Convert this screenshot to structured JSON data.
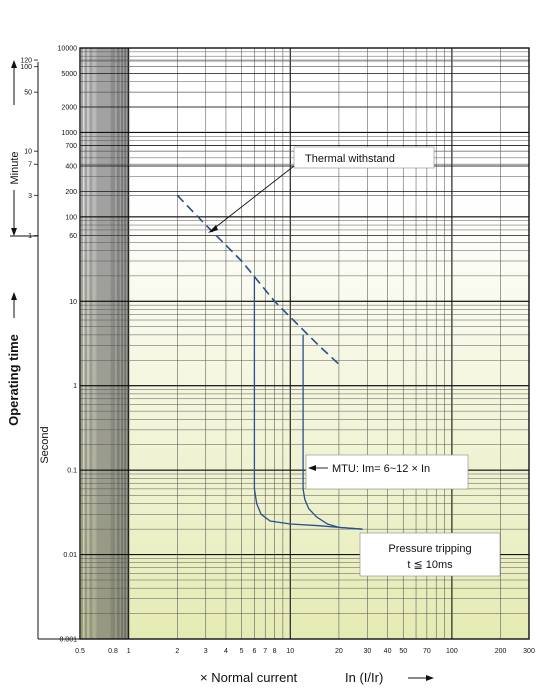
{
  "chart_data": {
    "type": "line",
    "title": "",
    "xscale": "log",
    "yscale": "log",
    "xlim": [
      0.5,
      300
    ],
    "ylim": [
      0.001,
      10000
    ],
    "grid": true,
    "x_ticks": [
      "0.5",
      "0.8",
      "1",
      "2",
      "3",
      "4",
      "5",
      "6",
      "7",
      "8",
      "10",
      "20",
      "30",
      "40",
      "50",
      "70",
      "100",
      "200",
      "300"
    ],
    "x_tick_values": [
      0.5,
      0.8,
      1,
      2,
      3,
      4,
      5,
      6,
      7,
      8,
      10,
      20,
      30,
      40,
      50,
      70,
      100,
      200,
      300
    ],
    "y_ticks": [
      "10000",
      "5000",
      "2000",
      "1000",
      "700",
      "400",
      "200",
      "100",
      "60",
      "10",
      "1",
      "0.1",
      "0.01",
      "0.001"
    ],
    "y_tick_values": [
      10000,
      5000,
      2000,
      1000,
      700,
      400,
      200,
      100,
      60,
      10,
      1,
      0.1,
      0.01,
      0.001
    ],
    "minute_ticks": [
      "120",
      "100",
      "50",
      "10",
      "7",
      "3",
      "1"
    ],
    "minute_tick_values": [
      120,
      100,
      50,
      10,
      7,
      3,
      1
    ],
    "labels": {
      "minute": "Minute",
      "second": "Second",
      "operating_time": "Operating time",
      "xlabel_left": "× Normal current",
      "xlabel_right": "In (I/Ir)"
    },
    "annotations": {
      "thermal": "Thermal withstand",
      "mtu": "MTU: Im= 6~12 × In",
      "pressure_line1": "Pressure tripping",
      "pressure_line2": "t ≦ 10ms"
    },
    "series": [
      {
        "style": "dashed",
        "points": [
          [
            2,
            180
          ],
          [
            3,
            80
          ],
          [
            5,
            30
          ],
          [
            8,
            10
          ],
          [
            10,
            6.5
          ],
          [
            15,
            3
          ],
          [
            20,
            1.8
          ]
        ]
      },
      {
        "style": "solid",
        "points": [
          [
            6,
            20
          ],
          [
            6,
            0.06
          ],
          [
            6.2,
            0.04
          ],
          [
            6.6,
            0.03
          ],
          [
            7.5,
            0.025
          ],
          [
            10,
            0.023
          ],
          [
            15,
            0.022
          ],
          [
            20,
            0.021
          ],
          [
            28,
            0.02
          ]
        ]
      },
      {
        "style": "solid",
        "points": [
          [
            12,
            4
          ],
          [
            12,
            0.06
          ],
          [
            12.3,
            0.045
          ],
          [
            13,
            0.035
          ],
          [
            14.5,
            0.028
          ],
          [
            17,
            0.023
          ],
          [
            20,
            0.021
          ],
          [
            28,
            0.02
          ]
        ]
      }
    ],
    "colors": {
      "curve": "#2a4f8a",
      "grid_heavy": "#111111",
      "grid_light": "#555555",
      "bg_top": "#ffffff",
      "bg_bottom": "#e6ebb4"
    }
  }
}
